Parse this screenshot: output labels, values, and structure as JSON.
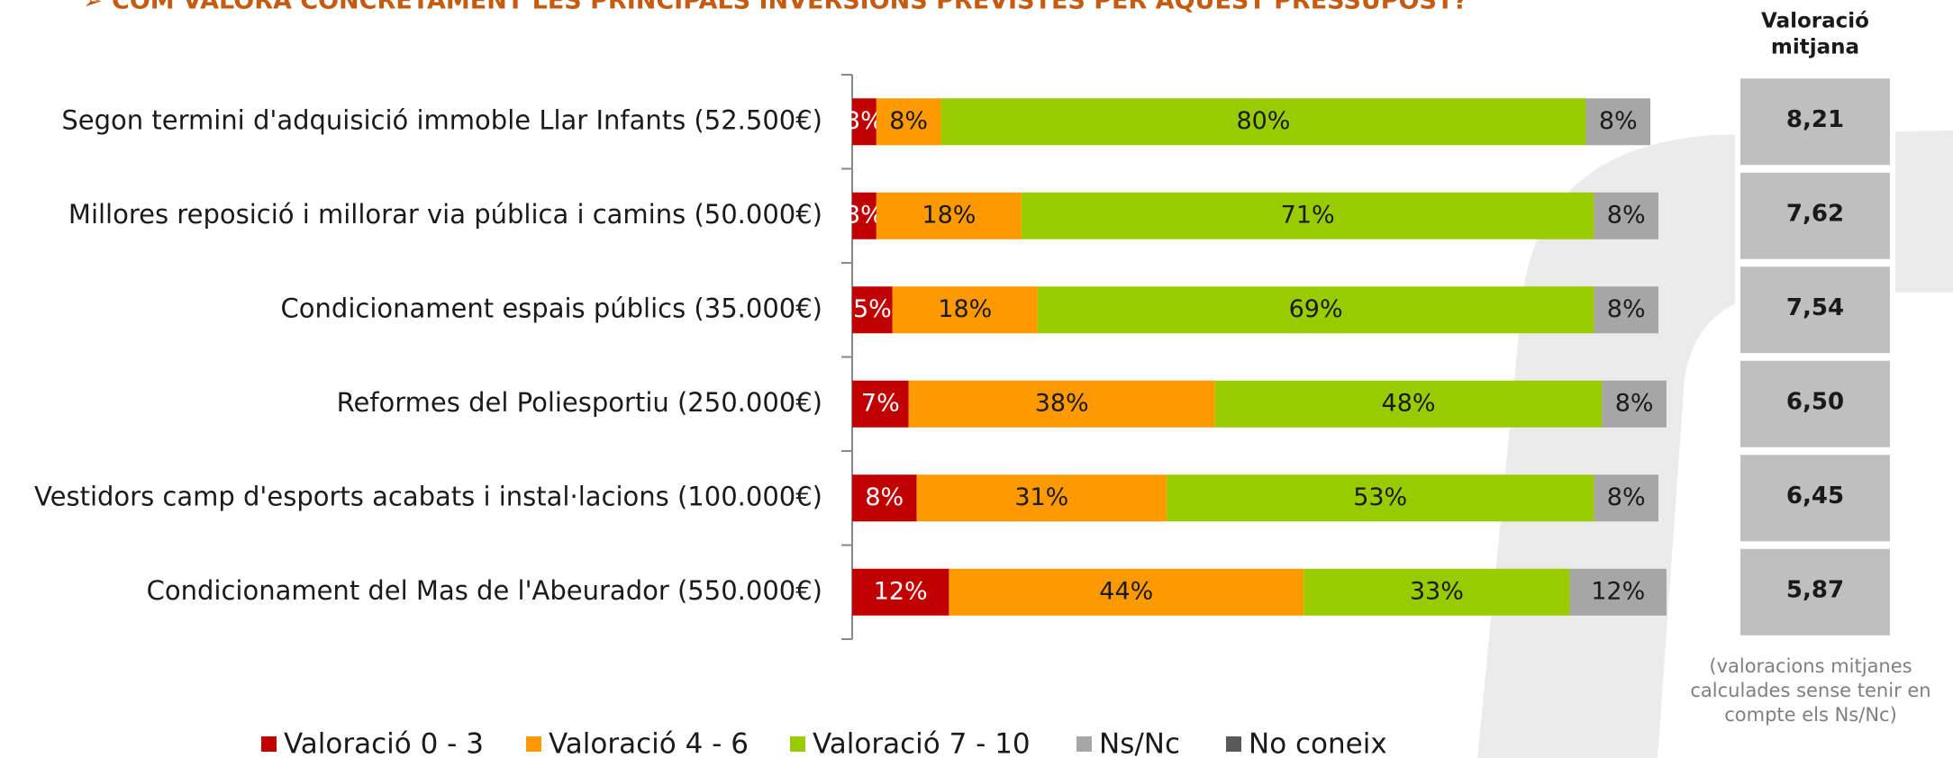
{
  "chart_data": {
    "type": "stacked_barh",
    "title": "COM VALORA CONCRETAMENT LES PRINCIPALS INVERSIONS PREVISTES PER AQUEST PRESSUPOST?",
    "categories": [
      "Segon termini d'adquisició immoble Llar Infants (52.500€)",
      "Millores reposició i millorar via pública i camins (50.000€)",
      "Condicionament espais públics (35.000€)",
      "Reformes del Poliesportiu (250.000€)",
      "Vestidors camp d'esports acabats i instal·lacions (100.000€)",
      "Condicionament del Mas de l'Abeurador (550.000€)"
    ],
    "series": [
      {
        "name": "Valoració 0 - 3",
        "color": "#c00000",
        "label_color": "#ffffff",
        "values": [
          3,
          3,
          5,
          7,
          8,
          12
        ],
        "value_labels": [
          "3%",
          "3%",
          "5%",
          "7%",
          "8%",
          "12%"
        ]
      },
      {
        "name": "Valoració 4 - 6",
        "color": "#ff9900",
        "label_color": "#1a1a1a",
        "values": [
          8,
          18,
          18,
          38,
          31,
          44
        ],
        "value_labels": [
          "8%",
          "18%",
          "18%",
          "38%",
          "31%",
          "44%"
        ]
      },
      {
        "name": "Valoració  7 - 10",
        "color": "#99cc00",
        "label_color": "#1a1a1a",
        "values": [
          80,
          71,
          69,
          48,
          53,
          33
        ],
        "value_labels": [
          "80%",
          "71%",
          "69%",
          "48%",
          "53%",
          "33%"
        ]
      },
      {
        "name": "Ns/Nc",
        "color": "#a6a6a6",
        "label_color": "#1a1a1a",
        "values": [
          8,
          8,
          8,
          8,
          8,
          12
        ],
        "value_labels": [
          "8%",
          "8%",
          "8%",
          "8%",
          "8%",
          "12%"
        ]
      },
      {
        "name": "No coneix",
        "color": "#595959",
        "values": [
          0,
          0,
          0,
          0,
          0,
          0
        ]
      }
    ],
    "xlim": [
      0,
      100
    ]
  },
  "average_panel": {
    "title_lines": [
      "Valoració",
      "mitjana"
    ],
    "values": [
      "8,21",
      "7,62",
      "7,54",
      "6,50",
      "6,45",
      "5,87"
    ],
    "note_lines": [
      "(valoracions mitjanes",
      "calculades sense tenir en",
      "compte els Ns/Nc)"
    ]
  }
}
